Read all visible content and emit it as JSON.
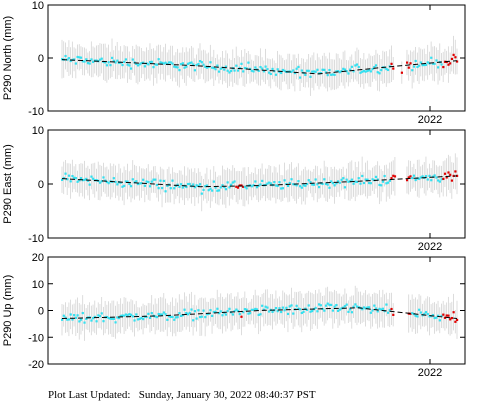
{
  "footer": {
    "label": "Plot Last Updated:",
    "timestamp": "Sunday, January 30, 2022 08:40:37 PST"
  },
  "colors": {
    "point": "#33e0f0",
    "recent_point": "#e00000",
    "error_bar": "#d4d4d4",
    "trend": "#000000"
  },
  "chart_data": [
    {
      "type": "scatter",
      "title": "",
      "xlabel": "",
      "ylabel": "P290 North (mm)",
      "ylim": [
        -10,
        10
      ],
      "yticks": [
        -10,
        0,
        10
      ],
      "xtick_labels": [
        "2022"
      ],
      "grid": false,
      "series": [
        {
          "values_summary": "daily positions ≈ 0 mm early, dipping to ≈ -3 mm, recovering to ≈ 0 mm",
          "trend": [
            [
              0,
              -0.3
            ],
            [
              0.35,
              -1.5
            ],
            [
              0.65,
              -3
            ],
            [
              0.85,
              -1.5
            ],
            [
              1,
              -0.5
            ]
          ]
        }
      ]
    },
    {
      "type": "scatter",
      "title": "",
      "xlabel": "",
      "ylabel": "P290 East (mm)",
      "ylim": [
        -10,
        10
      ],
      "yticks": [
        -10,
        0,
        10
      ],
      "xtick_labels": [
        "2022"
      ],
      "grid": false,
      "series": [
        {
          "values_summary": "daily positions ≈ 0 to +1 mm, dip ≈ -2 mm mid-period",
          "trend": [
            [
              0,
              1
            ],
            [
              0.35,
              -0.5
            ],
            [
              0.5,
              -0.3
            ],
            [
              0.75,
              0.5
            ],
            [
              1,
              1.5
            ]
          ]
        }
      ]
    },
    {
      "type": "scatter",
      "title": "",
      "xlabel": "",
      "ylabel": "P290 Up (mm)",
      "ylim": [
        -20,
        20
      ],
      "yticks": [
        -20,
        -10,
        0,
        10,
        20
      ],
      "xtick_labels": [
        "2022"
      ],
      "grid": false,
      "series": [
        {
          "values_summary": "daily positions scattered ±10 mm around a seasonal curve near 0 mm",
          "trend": [
            [
              0,
              -3
            ],
            [
              0.25,
              -2
            ],
            [
              0.5,
              0
            ],
            [
              0.75,
              1
            ],
            [
              1,
              -3
            ]
          ]
        }
      ]
    }
  ]
}
